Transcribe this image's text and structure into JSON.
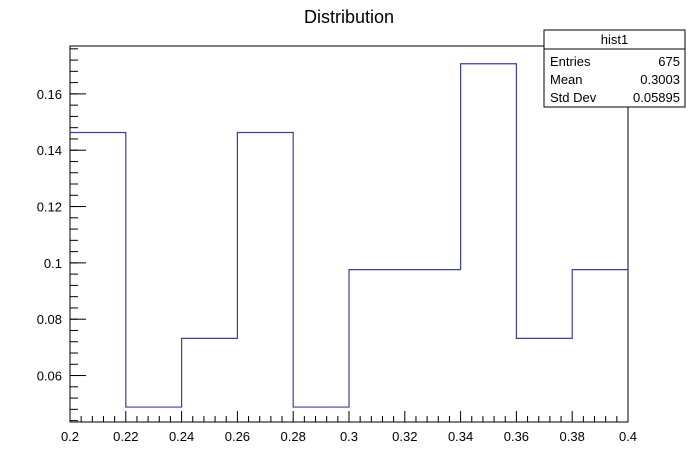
{
  "chart_data": {
    "type": "histogram",
    "title": "Distribution",
    "xlabel": "",
    "ylabel": "",
    "xlim": [
      0.2,
      0.4
    ],
    "ylim": [
      0.0435,
      0.177
    ],
    "bin_edges": [
      0.2,
      0.22,
      0.24,
      0.26,
      0.28,
      0.3,
      0.32,
      0.34,
      0.36,
      0.38,
      0.4
    ],
    "values": [
      0.1463,
      0.0488,
      0.0732,
      0.1463,
      0.0488,
      0.0976,
      0.0976,
      0.1707,
      0.0732,
      0.0976
    ],
    "x_ticks": [
      {
        "value": 0.2,
        "label": "0.2"
      },
      {
        "value": 0.22,
        "label": "0.22"
      },
      {
        "value": 0.24,
        "label": "0.24"
      },
      {
        "value": 0.26,
        "label": "0.26"
      },
      {
        "value": 0.28,
        "label": "0.28"
      },
      {
        "value": 0.3,
        "label": "0.3"
      },
      {
        "value": 0.32,
        "label": "0.32"
      },
      {
        "value": 0.34,
        "label": "0.34"
      },
      {
        "value": 0.36,
        "label": "0.36"
      },
      {
        "value": 0.38,
        "label": "0.38"
      },
      {
        "value": 0.4,
        "label": "0.4"
      }
    ],
    "y_ticks": [
      {
        "value": 0.06,
        "label": "0.06"
      },
      {
        "value": 0.08,
        "label": "0.08"
      },
      {
        "value": 0.1,
        "label": "0.1"
      },
      {
        "value": 0.12,
        "label": "0.12"
      },
      {
        "value": 0.14,
        "label": "0.14"
      },
      {
        "value": 0.16,
        "label": "0.16"
      }
    ],
    "line_color": "#3f3fa0",
    "legend_position": "top-right",
    "grid": false
  },
  "stats_box": {
    "name": "hist1",
    "rows": [
      {
        "label": "Entries",
        "value": "675"
      },
      {
        "label": "Mean",
        "value": "0.3003"
      },
      {
        "label": "Std Dev",
        "value": "0.05895"
      }
    ]
  }
}
